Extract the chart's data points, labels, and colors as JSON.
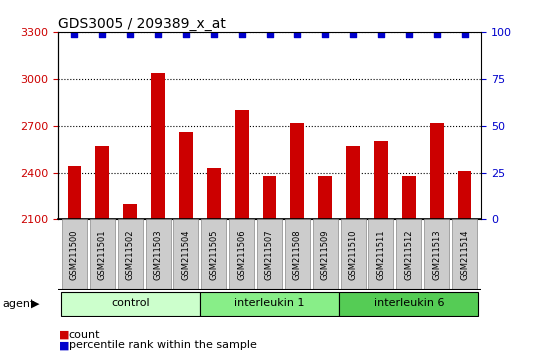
{
  "title": "GDS3005 / 209389_x_at",
  "samples": [
    "GSM211500",
    "GSM211501",
    "GSM211502",
    "GSM211503",
    "GSM211504",
    "GSM211505",
    "GSM211506",
    "GSM211507",
    "GSM211508",
    "GSM211509",
    "GSM211510",
    "GSM211511",
    "GSM211512",
    "GSM211513",
    "GSM211514"
  ],
  "counts": [
    2440,
    2570,
    2200,
    3040,
    2660,
    2430,
    2800,
    2380,
    2720,
    2380,
    2570,
    2600,
    2380,
    2720,
    2410
  ],
  "percentile": [
    99,
    99,
    99,
    99,
    99,
    99,
    99,
    99,
    99,
    99,
    99,
    99,
    99,
    99,
    99
  ],
  "groups": [
    {
      "label": "control",
      "start": 0,
      "end": 5,
      "color": "#ccffcc"
    },
    {
      "label": "interleukin 1",
      "start": 5,
      "end": 10,
      "color": "#88ee88"
    },
    {
      "label": "interleukin 6",
      "start": 10,
      "end": 15,
      "color": "#55cc55"
    }
  ],
  "bar_color": "#cc0000",
  "dot_color": "#0000cc",
  "ylim_left": [
    2100,
    3300
  ],
  "ylim_right": [
    0,
    100
  ],
  "yticks_left": [
    2100,
    2400,
    2700,
    3000,
    3300
  ],
  "yticks_right": [
    0,
    25,
    50,
    75,
    100
  ],
  "bar_width": 0.5,
  "agent_label": "agent",
  "legend_count_label": "count",
  "legend_pct_label": "percentile rank within the sample"
}
